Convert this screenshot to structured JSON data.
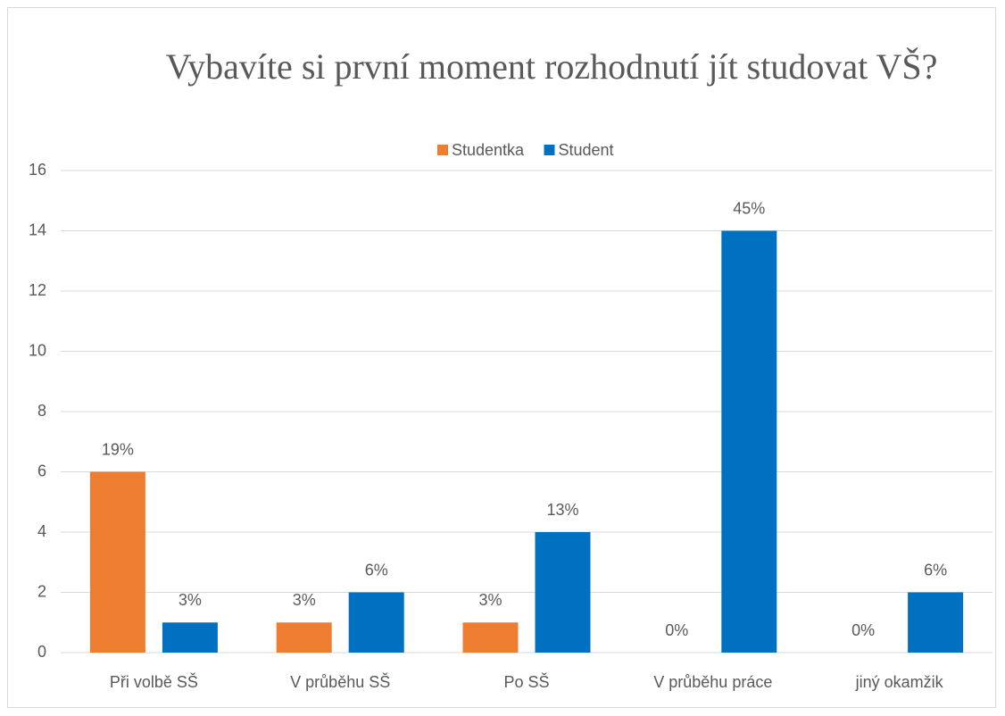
{
  "chart_data": {
    "type": "bar",
    "title": "Vybavíte si první moment rozhodnutí jít studovat VŠ?",
    "categories": [
      "Při volbě SŠ",
      "V průběhu SŠ",
      "Po SŠ",
      "V průběhu práce",
      "jiný okamžik"
    ],
    "series": [
      {
        "name": "Studentka",
        "color": "#ed7d31",
        "values": [
          6,
          1,
          1,
          0,
          0
        ],
        "value_labels": [
          "19%",
          "3%",
          "3%",
          "0%",
          "0%"
        ]
      },
      {
        "name": "Student",
        "color": "#0070c0",
        "values": [
          1,
          2,
          4,
          14,
          2
        ],
        "value_labels": [
          "3%",
          "6%",
          "13%",
          "45%",
          "6%"
        ]
      }
    ],
    "ylim": [
      0,
      16
    ],
    "yticks": [
      0,
      2,
      4,
      6,
      8,
      10,
      12,
      14,
      16
    ],
    "grid": true,
    "legend": "top"
  }
}
